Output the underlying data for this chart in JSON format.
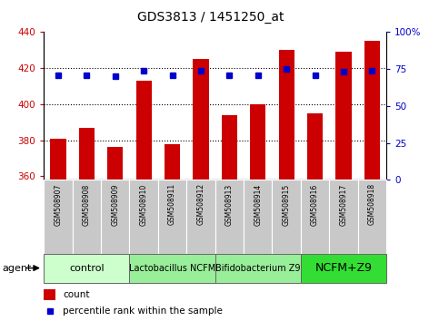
{
  "title": "GDS3813 / 1451250_at",
  "samples": [
    "GSM508907",
    "GSM508908",
    "GSM508909",
    "GSM508910",
    "GSM508911",
    "GSM508912",
    "GSM508913",
    "GSM508914",
    "GSM508915",
    "GSM508916",
    "GSM508917",
    "GSM508918"
  ],
  "counts": [
    381,
    387,
    376,
    413,
    378,
    425,
    394,
    400,
    430,
    395,
    429,
    435
  ],
  "percentile_ranks": [
    71,
    71,
    70,
    74,
    71,
    74,
    71,
    71,
    75,
    71,
    73,
    74
  ],
  "ylim_left": [
    358,
    440
  ],
  "ylim_right": [
    0,
    100
  ],
  "yticks_left": [
    360,
    380,
    400,
    420,
    440
  ],
  "yticks_right": [
    0,
    25,
    50,
    75,
    100
  ],
  "ytick_labels_right": [
    "0",
    "25",
    "50",
    "75",
    "100%"
  ],
  "bar_color": "#cc0000",
  "dot_color": "#0000cc",
  "grid_dotted_color": "#000000",
  "plot_bg_color": "#ffffff",
  "sample_box_color": "#c8c8c8",
  "agent_groups": [
    {
      "label": "control",
      "start": 0,
      "end": 2,
      "color": "#ccffcc",
      "fontsize": 8
    },
    {
      "label": "Lactobacillus NCFM",
      "start": 3,
      "end": 5,
      "color": "#99ee99",
      "fontsize": 7
    },
    {
      "label": "Bifidobacterium Z9",
      "start": 6,
      "end": 8,
      "color": "#99ee99",
      "fontsize": 7
    },
    {
      "label": "NCFM+Z9",
      "start": 9,
      "end": 11,
      "color": "#33dd33",
      "fontsize": 9
    }
  ],
  "legend_count_label": "count",
  "legend_pct_label": "percentile rank within the sample",
  "xlabel_agent": "agent",
  "title_fontsize": 10,
  "axis_label_color_left": "#cc0000",
  "axis_label_color_right": "#0000cc"
}
